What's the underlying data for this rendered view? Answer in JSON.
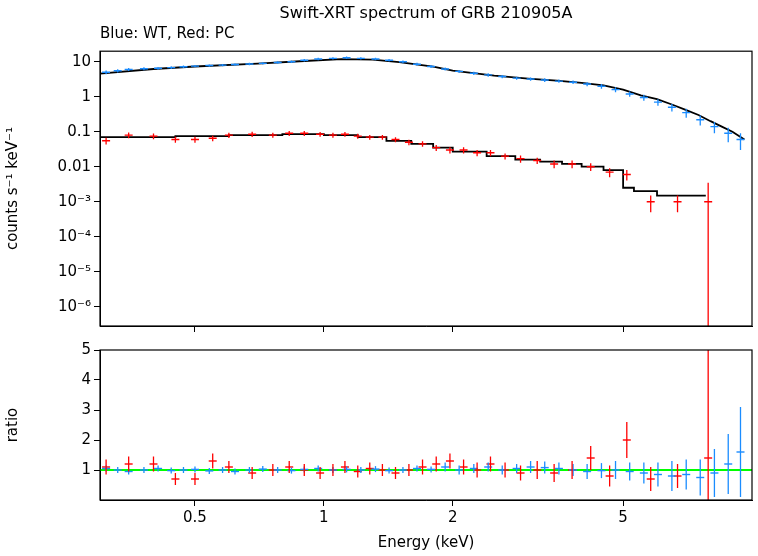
{
  "chart_data": [
    {
      "type": "scatter",
      "title": "Swift-XRT spectrum of GRB 210905A",
      "subtitle": "Blue: WT, Red: PC",
      "ylabel": "counts s⁻¹ keV⁻¹",
      "log": true,
      "grid": false,
      "tick_labels": "y",
      "xlim": [
        0.3,
        10
      ],
      "xticks": [
        0.5,
        1,
        2,
        5
      ],
      "ylim": [
        2.8e-07,
        20
      ],
      "yticks": [
        {
          "value": 1e-06,
          "label": "10⁻⁶"
        },
        {
          "value": 1e-05,
          "label": "10⁻⁵"
        },
        {
          "value": 0.0001,
          "label": "10⁻⁴"
        },
        {
          "value": 0.001,
          "label": "10⁻³"
        },
        0.01,
        0.1,
        1,
        10
      ],
      "series": [
        {
          "name": "WT",
          "color": "#1a8cff",
          "marker": "dash",
          "x": [
            0.31,
            0.33,
            0.35,
            0.38,
            0.41,
            0.44,
            0.47,
            0.5,
            0.54,
            0.58,
            0.62,
            0.67,
            0.72,
            0.78,
            0.84,
            0.9,
            0.97,
            1.05,
            1.13,
            1.22,
            1.32,
            1.42,
            1.53,
            1.65,
            1.78,
            1.92,
            2.07,
            2.24,
            2.42,
            2.61,
            2.82,
            3.04,
            3.28,
            3.54,
            3.82,
            4.12,
            4.45,
            4.8,
            5.18,
            5.59,
            6.03,
            6.5,
            7.02,
            7.57,
            8.17,
            8.8,
            9.4
          ],
          "values": [
            5.0,
            5.5,
            6.0,
            6.3,
            6.5,
            6.8,
            7.2,
            7.5,
            7.8,
            8.0,
            8.3,
            8.6,
            9.0,
            9.5,
            10,
            11,
            12,
            12.5,
            13,
            12.5,
            12,
            11,
            10,
            8.5,
            7.3,
            6.2,
            5.3,
            4.7,
            4.2,
            3.8,
            3.4,
            3.2,
            3.0,
            2.8,
            2.6,
            2.3,
            2.0,
            1.6,
            1.2,
            0.95,
            0.7,
            0.5,
            0.35,
            0.22,
            0.14,
            0.09,
            0.06
          ],
          "errors": [
            0.6,
            0.6,
            0.6,
            0.6,
            0.6,
            0.6,
            0.6,
            0.6,
            0.6,
            0.6,
            0.6,
            0.7,
            0.7,
            0.8,
            0.8,
            0.9,
            1.0,
            1.0,
            1.0,
            1.0,
            1.0,
            0.9,
            0.9,
            0.8,
            0.7,
            0.6,
            0.5,
            0.5,
            0.45,
            0.4,
            0.35,
            0.35,
            0.35,
            0.3,
            0.3,
            0.3,
            0.3,
            0.25,
            0.2,
            0.18,
            0.15,
            0.12,
            0.1,
            0.07,
            0.05,
            0.04,
            0.03
          ]
        },
        {
          "name": "PC",
          "color": "#ff0000",
          "marker": "dash",
          "x": [
            0.31,
            0.35,
            0.4,
            0.45,
            0.5,
            0.55,
            0.6,
            0.68,
            0.76,
            0.83,
            0.9,
            0.98,
            1.05,
            1.12,
            1.2,
            1.28,
            1.37,
            1.47,
            1.58,
            1.7,
            1.83,
            1.97,
            2.12,
            2.28,
            2.45,
            2.65,
            2.88,
            3.15,
            3.45,
            3.8,
            4.2,
            4.65,
            5.1,
            5.8,
            6.7,
            7.9
          ],
          "values": [
            0.055,
            0.08,
            0.075,
            0.06,
            0.06,
            0.065,
            0.08,
            0.085,
            0.08,
            0.09,
            0.09,
            0.085,
            0.08,
            0.085,
            0.075,
            0.07,
            0.07,
            0.06,
            0.05,
            0.045,
            0.035,
            0.03,
            0.03,
            0.025,
            0.025,
            0.02,
            0.017,
            0.015,
            0.012,
            0.012,
            0.01,
            0.007,
            0.006,
            0.001,
            0.001,
            0.001
          ],
          "errors": [
            0.012,
            0.015,
            0.014,
            0.012,
            0.012,
            0.012,
            0.014,
            0.014,
            0.013,
            0.014,
            0.014,
            0.013,
            0.013,
            0.013,
            0.012,
            0.011,
            0.011,
            0.01,
            0.009,
            0.008,
            0.007,
            0.006,
            0.006,
            0.005,
            0.005,
            0.004,
            0.004,
            0.003,
            0.003,
            0.003,
            0.0025,
            0.002,
            0.002,
            0.0005,
            0.0005,
            0.0025
          ]
        },
        {
          "type": "line",
          "color": "#000000",
          "x": [
            0.3,
            0.4,
            0.5,
            0.7,
            0.9,
            1.1,
            1.3,
            1.5,
            1.8,
            2.0,
            2.5,
            3,
            3.5,
            4,
            4.5,
            5,
            5.5,
            6,
            6.5,
            7,
            7.5,
            8,
            8.5,
            9,
            9.6
          ],
          "values": [
            4.6,
            6.2,
            7.3,
            8.8,
            10.5,
            11.8,
            11.5,
            9.8,
            7.2,
            5.6,
            4.0,
            3.3,
            2.9,
            2.5,
            2.1,
            1.6,
            1.1,
            0.85,
            0.6,
            0.42,
            0.3,
            0.2,
            0.14,
            0.1,
            0.06
          ]
        },
        {
          "type": "line",
          "line_style": "steps",
          "color": "#000000",
          "x": [
            0.3,
            0.33,
            0.45,
            0.6,
            0.8,
            1,
            1.2,
            1.4,
            1.6,
            1.8,
            2,
            2.4,
            2.8,
            3.2,
            3.6,
            4,
            4.5,
            5,
            5.3,
            6,
            7,
            7.8
          ],
          "values": [
            0.05,
            0.07,
            0.07,
            0.075,
            0.08,
            0.085,
            0.08,
            0.07,
            0.055,
            0.045,
            0.035,
            0.027,
            0.02,
            0.016,
            0.014,
            0.012,
            0.01,
            0.008,
            0.0025,
            0.002,
            0.0015,
            0.0015
          ]
        }
      ]
    },
    {
      "type": "scatter",
      "xlabel": "Energy (keV)",
      "ylabel": "ratio",
      "log": "x",
      "grid": false,
      "xlim": [
        0.3,
        10
      ],
      "xticks": [
        0.5,
        1,
        2,
        5
      ],
      "ylim": [
        0,
        5
      ],
      "yticks": [
        1,
        2,
        3,
        4,
        5
      ],
      "series": [
        {
          "color": "#1a8cff",
          "marker": "dash",
          "x": [
            0.31,
            0.33,
            0.35,
            0.38,
            0.41,
            0.44,
            0.47,
            0.5,
            0.54,
            0.58,
            0.62,
            0.67,
            0.72,
            0.78,
            0.84,
            0.9,
            0.97,
            1.05,
            1.13,
            1.22,
            1.32,
            1.42,
            1.53,
            1.65,
            1.78,
            1.92,
            2.07,
            2.24,
            2.42,
            2.61,
            2.82,
            3.04,
            3.28,
            3.54,
            3.82,
            4.12,
            4.45,
            4.8,
            5.18,
            5.59,
            6.03,
            6.5,
            7.02,
            7.57,
            8.17,
            8.8,
            9.4
          ],
          "values": [
            1.05,
            1.0,
            0.95,
            1.0,
            1.05,
            0.98,
            1.0,
            1.02,
            0.97,
            1.0,
            0.95,
            1.0,
            1.03,
            1.0,
            0.98,
            1.02,
            1.05,
            1.0,
            1.02,
            1.0,
            1.03,
            0.98,
            1.0,
            1.05,
            1.02,
            1.1,
            1.0,
            1.05,
            1.1,
            1.0,
            1.05,
            1.1,
            1.08,
            1.05,
            1.0,
            0.95,
            0.98,
            1.0,
            0.95,
            0.9,
            0.85,
            0.8,
            0.85,
            0.75,
            0.9,
            1.2,
            1.6
          ],
          "errors": [
            0.1,
            0.1,
            0.1,
            0.1,
            0.1,
            0.1,
            0.1,
            0.1,
            0.1,
            0.1,
            0.1,
            0.1,
            0.1,
            0.1,
            0.1,
            0.1,
            0.1,
            0.1,
            0.1,
            0.1,
            0.1,
            0.1,
            0.1,
            0.1,
            0.1,
            0.15,
            0.15,
            0.15,
            0.15,
            0.15,
            0.15,
            0.2,
            0.2,
            0.2,
            0.2,
            0.25,
            0.25,
            0.3,
            0.3,
            0.35,
            0.4,
            0.5,
            0.5,
            0.6,
            0.8,
            1.0,
            1.5
          ]
        },
        {
          "color": "#ff0000",
          "marker": "dash",
          "x": [
            0.31,
            0.35,
            0.4,
            0.45,
            0.5,
            0.55,
            0.6,
            0.68,
            0.76,
            0.83,
            0.9,
            0.98,
            1.05,
            1.12,
            1.2,
            1.28,
            1.37,
            1.47,
            1.58,
            1.7,
            1.83,
            1.97,
            2.12,
            2.28,
            2.45,
            2.65,
            2.88,
            3.15,
            3.45,
            3.8,
            4.2,
            4.65,
            5.1,
            5.8,
            6.7,
            7.9
          ],
          "values": [
            1.1,
            1.2,
            1.2,
            0.7,
            0.7,
            1.3,
            1.1,
            0.9,
            1.0,
            1.1,
            1.0,
            0.9,
            1.0,
            1.1,
            0.95,
            1.05,
            1.0,
            0.9,
            1.0,
            1.1,
            1.2,
            1.3,
            1.1,
            1.0,
            1.2,
            1.0,
            0.9,
            1.0,
            0.9,
            1.0,
            1.4,
            0.8,
            2.0,
            0.7,
            0.8,
            1.4
          ],
          "errors": [
            0.25,
            0.25,
            0.25,
            0.2,
            0.2,
            0.25,
            0.2,
            0.2,
            0.2,
            0.2,
            0.2,
            0.2,
            0.2,
            0.2,
            0.2,
            0.2,
            0.2,
            0.2,
            0.2,
            0.25,
            0.25,
            0.25,
            0.25,
            0.25,
            0.25,
            0.25,
            0.25,
            0.3,
            0.3,
            0.3,
            0.4,
            0.35,
            0.6,
            0.4,
            0.4,
            3.6
          ]
        },
        {
          "type": "line",
          "color": "#00ff00",
          "x": [
            0.3,
            10
          ],
          "values": [
            1,
            1
          ]
        }
      ]
    }
  ]
}
